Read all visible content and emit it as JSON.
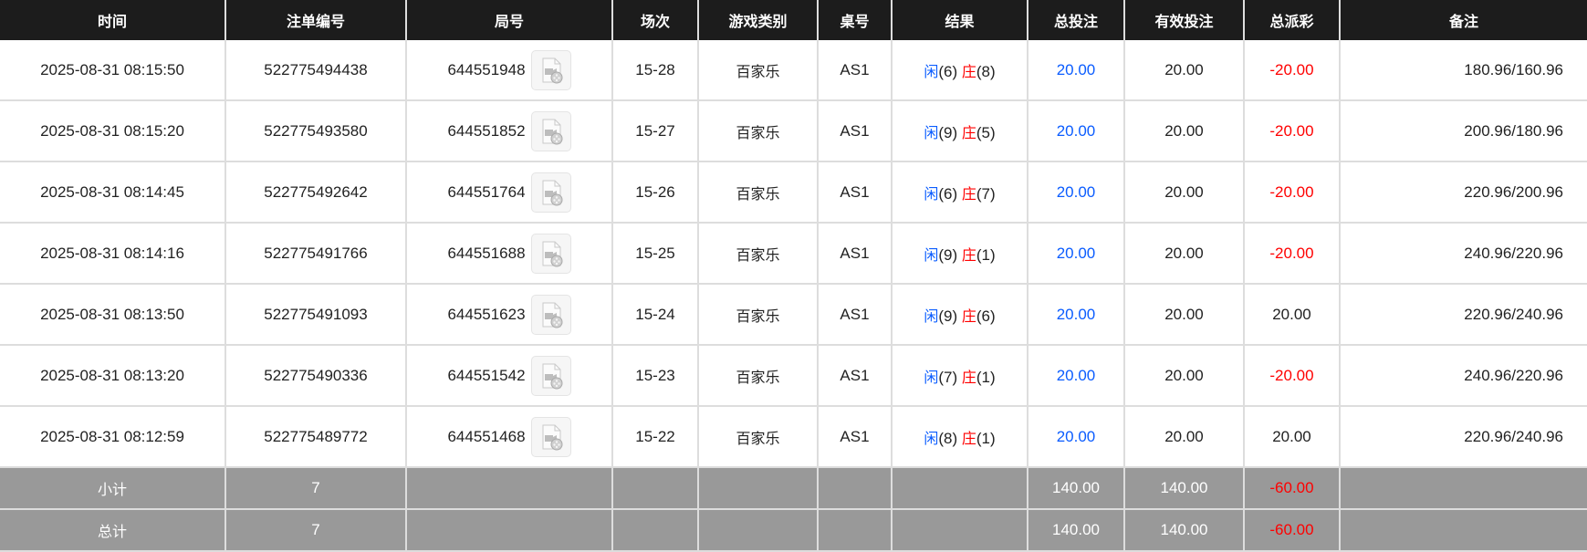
{
  "columns": [
    "时间",
    "注单编号",
    "局号",
    "场次",
    "游戏类别",
    "桌号",
    "结果",
    "总投注",
    "有效投注",
    "总派彩",
    "备注"
  ],
  "colors": {
    "player": "#0a5cff",
    "banker": "#ff0000",
    "negative": "#ff0000",
    "header_bg": "#1c1c1c",
    "summary_bg": "#999999"
  },
  "rows": [
    {
      "time": "2025-08-31 08:15:50",
      "bet_id": "522775494438",
      "round": "644551948",
      "shoe": "15-28",
      "game": "百家乐",
      "table": "AS1",
      "player": "闲",
      "player_score": "(6)",
      "banker": "庄",
      "banker_score": "(8)",
      "bet": "20.00",
      "valid_bet": "20.00",
      "payout": "-20.00",
      "payout_negative": true,
      "note": "180.96/160.96"
    },
    {
      "time": "2025-08-31 08:15:20",
      "bet_id": "522775493580",
      "round": "644551852",
      "shoe": "15-27",
      "game": "百家乐",
      "table": "AS1",
      "player": "闲",
      "player_score": "(9)",
      "banker": "庄",
      "banker_score": "(5)",
      "bet": "20.00",
      "valid_bet": "20.00",
      "payout": "-20.00",
      "payout_negative": true,
      "note": "200.96/180.96"
    },
    {
      "time": "2025-08-31 08:14:45",
      "bet_id": "522775492642",
      "round": "644551764",
      "shoe": "15-26",
      "game": "百家乐",
      "table": "AS1",
      "player": "闲",
      "player_score": "(6)",
      "banker": "庄",
      "banker_score": "(7)",
      "bet": "20.00",
      "valid_bet": "20.00",
      "payout": "-20.00",
      "payout_negative": true,
      "note": "220.96/200.96"
    },
    {
      "time": "2025-08-31 08:14:16",
      "bet_id": "522775491766",
      "round": "644551688",
      "shoe": "15-25",
      "game": "百家乐",
      "table": "AS1",
      "player": "闲",
      "player_score": "(9)",
      "banker": "庄",
      "banker_score": "(1)",
      "bet": "20.00",
      "valid_bet": "20.00",
      "payout": "-20.00",
      "payout_negative": true,
      "note": "240.96/220.96"
    },
    {
      "time": "2025-08-31 08:13:50",
      "bet_id": "522775491093",
      "round": "644551623",
      "shoe": "15-24",
      "game": "百家乐",
      "table": "AS1",
      "player": "闲",
      "player_score": "(9)",
      "banker": "庄",
      "banker_score": "(6)",
      "bet": "20.00",
      "valid_bet": "20.00",
      "payout": "20.00",
      "payout_negative": false,
      "note": "220.96/240.96"
    },
    {
      "time": "2025-08-31 08:13:20",
      "bet_id": "522775490336",
      "round": "644551542",
      "shoe": "15-23",
      "game": "百家乐",
      "table": "AS1",
      "player": "闲",
      "player_score": "(7)",
      "banker": "庄",
      "banker_score": "(1)",
      "bet": "20.00",
      "valid_bet": "20.00",
      "payout": "-20.00",
      "payout_negative": true,
      "note": "240.96/220.96"
    },
    {
      "time": "2025-08-31 08:12:59",
      "bet_id": "522775489772",
      "round": "644551468",
      "shoe": "15-22",
      "game": "百家乐",
      "table": "AS1",
      "player": "闲",
      "player_score": "(8)",
      "banker": "庄",
      "banker_score": "(1)",
      "bet": "20.00",
      "valid_bet": "20.00",
      "payout": "20.00",
      "payout_negative": false,
      "note": "220.96/240.96"
    }
  ],
  "subtotal": {
    "label": "小计",
    "count": "7",
    "bet": "140.00",
    "valid_bet": "140.00",
    "payout": "-60.00"
  },
  "total": {
    "label": "总计",
    "count": "7",
    "bet": "140.00",
    "valid_bet": "140.00",
    "payout": "-60.00"
  },
  "icons": {
    "replay": "video-replay-icon"
  }
}
